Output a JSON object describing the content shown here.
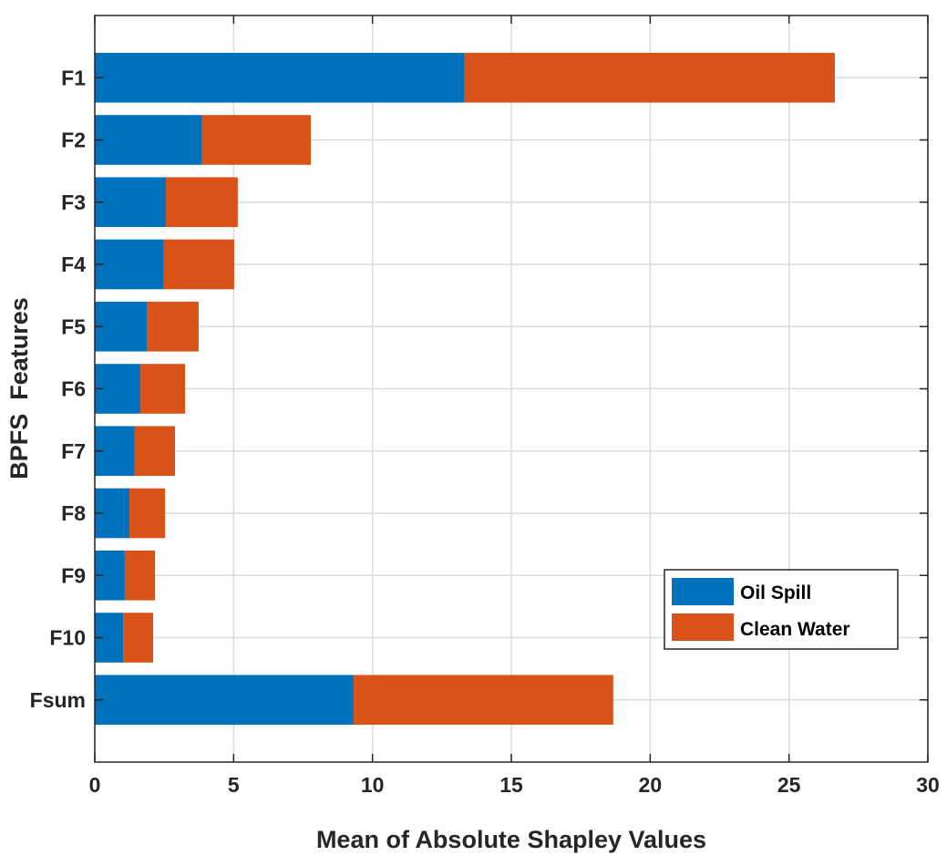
{
  "chart_data": {
    "type": "bar",
    "orientation": "horizontal",
    "stacked": true,
    "title": "",
    "xlabel": "Mean of Absolute Shapley Values",
    "ylabel": "BPFS  Features",
    "xlim": [
      0,
      30
    ],
    "xticks": [
      "0",
      "5",
      "10",
      "15",
      "20",
      "25",
      "30"
    ],
    "categories": [
      "F1",
      "F2",
      "F3",
      "F4",
      "F5",
      "F6",
      "F7",
      "F8",
      "F9",
      "F10",
      "Fsum"
    ],
    "series": [
      {
        "name": "Oil Spill",
        "color": "#0072BD",
        "values": [
          13.32,
          3.87,
          2.56,
          2.49,
          1.87,
          1.64,
          1.44,
          1.25,
          1.08,
          1.02,
          9.32
        ]
      },
      {
        "name": "Clean Water",
        "color": "#D95319",
        "values": [
          13.33,
          3.91,
          2.59,
          2.53,
          1.87,
          1.61,
          1.45,
          1.28,
          1.09,
          1.08,
          9.35
        ]
      }
    ],
    "grid": true,
    "legend_position": "bottom-right"
  }
}
